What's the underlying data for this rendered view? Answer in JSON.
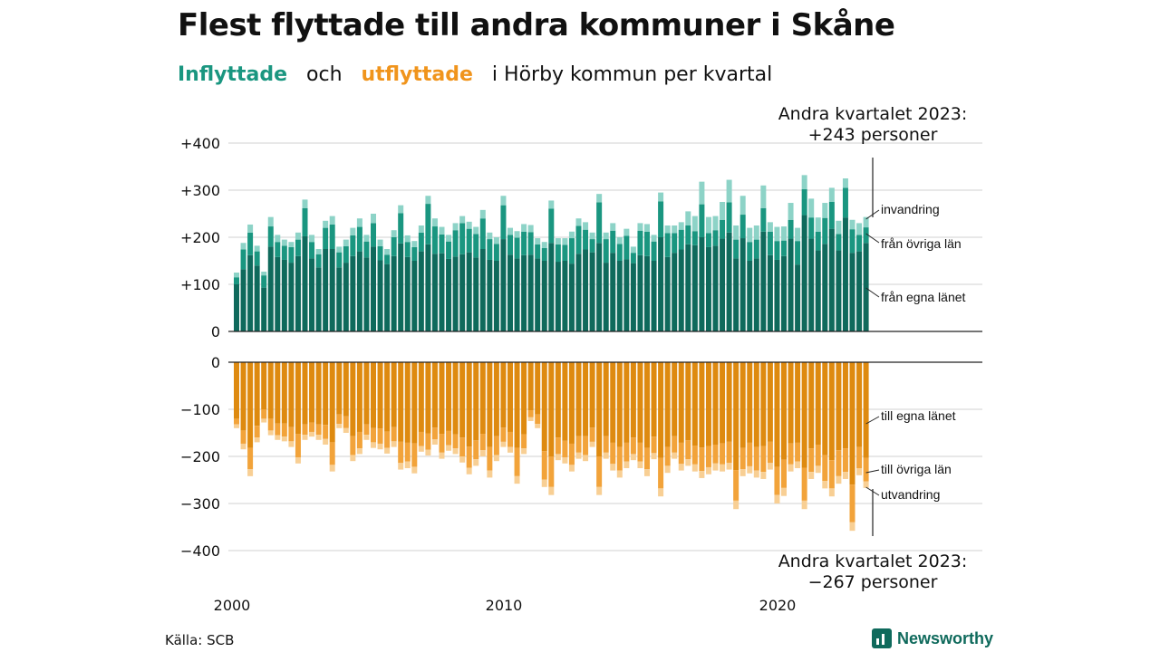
{
  "title": "Flest flyttade till andra kommuner i Skåne",
  "subtitle": {
    "in_word": "Inflyttade",
    "and_word": "och",
    "out_word": "utflyttade",
    "rest": "i Hörby kommun per kvartal"
  },
  "annotations": {
    "top_line1": "Andra kvartalet 2023:",
    "top_line2": "+243 personer",
    "bottom_line1": "Andra kvartalet 2023:",
    "bottom_line2": "−267 personer"
  },
  "source": "Källa: SCB",
  "logo_text": "Newsworthy",
  "colors": {
    "in_egna": "#0f6a5c",
    "in_ovriga": "#1a9680",
    "in_invandring": "#8dd3c7",
    "out_egna": "#de8a10",
    "out_ovriga": "#f2a33a",
    "out_utvandring": "#f8cf94",
    "grid": "#e0e0e0",
    "zero": "#222222"
  },
  "chart_data": [
    {
      "type": "bar",
      "stacked": true,
      "title": "Inflyttade",
      "x_ticks": [
        "2000",
        "2010",
        "2020"
      ],
      "y_ticks": [
        "0",
        "+100",
        "+200",
        "+300",
        "+400"
      ],
      "ylim": [
        0,
        400
      ],
      "x_start": "2000 Q1",
      "x_end": "2023 Q2",
      "series_labels": [
        "från egna länet",
        "från övriga län",
        "invandring"
      ],
      "totals": [
        125,
        188,
        227,
        182,
        127,
        243,
        205,
        195,
        190,
        210,
        280,
        205,
        175,
        235,
        245,
        180,
        195,
        220,
        240,
        205,
        250,
        195,
        175,
        215,
        268,
        204,
        192,
        225,
        288,
        240,
        222,
        205,
        230,
        245,
        233,
        222,
        258,
        210,
        200,
        288,
        220,
        213,
        228,
        226,
        198,
        190,
        278,
        198,
        198,
        212,
        240,
        232,
        210,
        292,
        210,
        230,
        200,
        218,
        180,
        230,
        228,
        205,
        295,
        225,
        225,
        232,
        255,
        245,
        318,
        243,
        245,
        275,
        322,
        225,
        288,
        220,
        225,
        310,
        232,
        222,
        223,
        273,
        220,
        332,
        282,
        242,
        273,
        305,
        235,
        325,
        237,
        230,
        243
      ],
      "invandring": [
        10,
        14,
        17,
        12,
        8,
        20,
        15,
        13,
        11,
        15,
        18,
        15,
        11,
        15,
        18,
        12,
        14,
        16,
        18,
        14,
        20,
        14,
        12,
        15,
        17,
        14,
        13,
        15,
        17,
        17,
        16,
        14,
        15,
        15,
        15,
        15,
        18,
        14,
        14,
        20,
        15,
        14,
        16,
        15,
        13,
        13,
        17,
        13,
        14,
        14,
        16,
        16,
        14,
        18,
        14,
        16,
        14,
        15,
        13,
        16,
        16,
        14,
        19,
        16,
        16,
        16,
        30,
        32,
        48,
        34,
        30,
        38,
        48,
        30,
        40,
        30,
        30,
        48,
        20,
        30,
        30,
        36,
        28,
        30,
        40,
        30,
        32,
        30,
        28,
        20,
        20,
        25,
        22
      ],
      "fran_ovriga_lan": [
        15,
        42,
        48,
        30,
        26,
        43,
        32,
        30,
        33,
        35,
        60,
        35,
        28,
        45,
        52,
        32,
        35,
        44,
        52,
        34,
        50,
        30,
        20,
        40,
        64,
        32,
        29,
        40,
        86,
        58,
        40,
        37,
        56,
        66,
        50,
        50,
        65,
        44,
        36,
        72,
        42,
        44,
        50,
        48,
        30,
        27,
        73,
        37,
        34,
        54,
        59,
        42,
        28,
        86,
        50,
        47,
        36,
        50,
        22,
        52,
        52,
        41,
        76,
        51,
        42,
        42,
        40,
        30,
        70,
        30,
        33,
        40,
        64,
        40,
        50,
        40,
        40,
        50,
        50,
        40,
        33,
        40,
        50,
        55,
        45,
        40,
        55,
        57,
        35,
        63,
        50,
        35,
        33
      ],
      "fran_egna_lanet": [
        100,
        132,
        162,
        140,
        93,
        180,
        158,
        152,
        146,
        160,
        202,
        155,
        136,
        175,
        175,
        136,
        146,
        160,
        170,
        157,
        180,
        151,
        143,
        160,
        187,
        158,
        150,
        170,
        185,
        165,
        166,
        154,
        159,
        164,
        168,
        157,
        175,
        152,
        150,
        196,
        163,
        155,
        162,
        163,
        155,
        150,
        188,
        148,
        150,
        144,
        165,
        174,
        168,
        188,
        146,
        167,
        150,
        153,
        145,
        162,
        160,
        150,
        200,
        158,
        167,
        174,
        185,
        183,
        200,
        179,
        182,
        197,
        210,
        155,
        198,
        150,
        155,
        212,
        162,
        152,
        160,
        197,
        142,
        247,
        197,
        172,
        186,
        218,
        172,
        242,
        167,
        170,
        188
      ]
    },
    {
      "type": "bar",
      "stacked": true,
      "title": "Utflyttade",
      "y_ticks": [
        "0",
        "−100",
        "−200",
        "−300",
        "−400"
      ],
      "ylim": [
        -400,
        0
      ],
      "series_labels": [
        "till egna länet",
        "till övriga län",
        "utvandring"
      ],
      "totals": [
        -140,
        -185,
        -242,
        -170,
        -128,
        -155,
        -165,
        -168,
        -180,
        -215,
        -165,
        -158,
        -165,
        -175,
        -232,
        -140,
        -150,
        -210,
        -195,
        -165,
        -182,
        -185,
        -194,
        -180,
        -228,
        -225,
        -236,
        -190,
        -198,
        -175,
        -205,
        -188,
        -195,
        -213,
        -238,
        -220,
        -200,
        -245,
        -210,
        -180,
        -192,
        -258,
        -195,
        -125,
        -140,
        -265,
        -282,
        -208,
        -215,
        -232,
        -205,
        -210,
        -180,
        -282,
        -205,
        -230,
        -245,
        -225,
        -208,
        -225,
        -242,
        -206,
        -285,
        -235,
        -205,
        -230,
        -220,
        -232,
        -246,
        -238,
        -230,
        -232,
        -228,
        -312,
        -242,
        -236,
        -245,
        -248,
        -228,
        -300,
        -284,
        -232,
        -225,
        -312,
        -248,
        -235,
        -268,
        -285,
        -258,
        -248,
        -358,
        -240,
        -267
      ],
      "utvandring": [
        -8,
        -12,
        -15,
        -10,
        -8,
        -10,
        -10,
        -10,
        -12,
        -13,
        -11,
        -10,
        -11,
        -12,
        -14,
        -9,
        -10,
        -13,
        -12,
        -11,
        -12,
        -12,
        -12,
        -12,
        -14,
        -14,
        -14,
        -12,
        -12,
        -11,
        -13,
        -12,
        -12,
        -13,
        -14,
        -14,
        -13,
        -15,
        -13,
        -11,
        -12,
        -16,
        -12,
        -8,
        -9,
        -16,
        -17,
        -13,
        -13,
        -14,
        -13,
        -13,
        -11,
        -17,
        -13,
        -14,
        -15,
        -14,
        -13,
        -14,
        -15,
        -13,
        -17,
        -15,
        -13,
        -14,
        -14,
        -15,
        -15,
        -15,
        -15,
        -15,
        -14,
        -18,
        -15,
        -15,
        -15,
        -15,
        -14,
        -18,
        -17,
        -15,
        -14,
        -18,
        -15,
        -15,
        -16,
        -17,
        -16,
        -15,
        -18,
        -15,
        -14
      ],
      "till_ovriga_lan": [
        -12,
        -28,
        -45,
        -25,
        -20,
        -25,
        -25,
        -28,
        -30,
        -50,
        -22,
        -20,
        -22,
        -30,
        -48,
        -20,
        -25,
        -40,
        -35,
        -22,
        -30,
        -32,
        -35,
        -30,
        -45,
        -40,
        -50,
        -30,
        -35,
        -25,
        -40,
        -30,
        -30,
        -40,
        -45,
        -40,
        -35,
        -50,
        -40,
        -30,
        -32,
        -60,
        -30,
        -15,
        -20,
        -60,
        -65,
        -35,
        -35,
        -45,
        -35,
        -40,
        -30,
        -65,
        -35,
        -45,
        -50,
        -40,
        -35,
        -40,
        -45,
        -35,
        -65,
        -40,
        -35,
        -45,
        -40,
        -40,
        -50,
        -45,
        -40,
        -45,
        -45,
        -65,
        -45,
        -50,
        -50,
        -55,
        -45,
        -60,
        -60,
        -45,
        -40,
        -70,
        -50,
        -45,
        -55,
        -60,
        -55,
        -50,
        -80,
        -45,
        -50
      ],
      "till_egna_lanet": [
        -120,
        -145,
        -182,
        -135,
        -100,
        -120,
        -130,
        -130,
        -138,
        -152,
        -132,
        -128,
        -132,
        -133,
        -170,
        -111,
        -115,
        -157,
        -148,
        -132,
        -140,
        -141,
        -147,
        -138,
        -169,
        -171,
        -172,
        -148,
        -151,
        -139,
        -152,
        -146,
        -153,
        -160,
        -179,
        -166,
        -152,
        -180,
        -157,
        -139,
        -148,
        -182,
        -153,
        -102,
        -111,
        -189,
        -200,
        -160,
        -167,
        -173,
        -157,
        -157,
        -139,
        -200,
        -157,
        -171,
        -180,
        -171,
        -160,
        -171,
        -182,
        -158,
        -203,
        -180,
        -157,
        -171,
        -166,
        -177,
        -181,
        -178,
        -175,
        -172,
        -169,
        -229,
        -182,
        -171,
        -180,
        -178,
        -169,
        -222,
        -207,
        -172,
        -171,
        -224,
        -183,
        -175,
        -197,
        -208,
        -187,
        -183,
        -260,
        -180,
        -203
      ]
    }
  ]
}
